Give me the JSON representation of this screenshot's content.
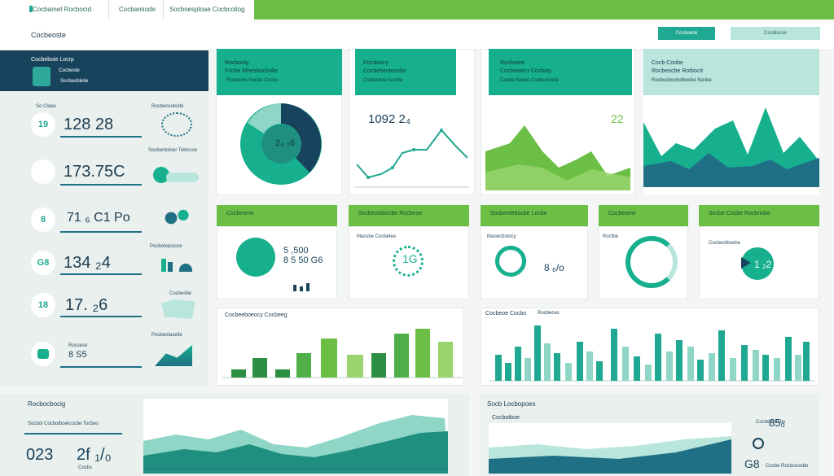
{
  "topbar": {
    "tab1": "Cocbamet Rocbocid",
    "tab2": "Cocbamiode",
    "tab3": "Socboesploae Cocbcoilog"
  },
  "header": {
    "title": "Cocbeoste",
    "btn_primary": "Cocbowte",
    "btn_secondary": "Cocblocke"
  },
  "sidebar": {
    "head_title": "Cocbeboie Locrp",
    "head_line1": "Cocbeote",
    "head_line2": "Socbeoblelie",
    "kpis": [
      {
        "icon": "19",
        "value": "128 28",
        "label": "So Cloee",
        "side": "Rocbensolcide"
      },
      {
        "icon": "",
        "value": "173.75C",
        "label": "",
        "side": "Socbentoboir Tebicsse"
      },
      {
        "icon": "8",
        "value": "71 ₆ C1 Po",
        "label": "",
        "side": ""
      },
      {
        "icon": "G8",
        "value": "134 ₂4",
        "label": "",
        "side": "Pocbotepiocoe"
      },
      {
        "icon": "18",
        "value": "17. ₂6",
        "label": "",
        "side": "Cocbeotie"
      },
      {
        "icon": "",
        "value": "8 S5",
        "label": "Rocsese",
        "side": "Pocbeotaseile"
      }
    ]
  },
  "top_cards": [
    {
      "title": "Rocbooty",
      "sub": "Focbe Mhestrocbolie",
      "sub2": "Rocbeoto Nocbe Cocbs",
      "value": "2₀ ₂6"
    },
    {
      "title": "Rocboocy",
      "sub": "Cocbebeoteocbe",
      "sub2": "Cocbeoste bcolde",
      "value": "1092 2₄"
    },
    {
      "title": "Rocbotee",
      "sub": "Cocbeotecr Cocbaty",
      "sub2": "Cocbe Nocbe Corbecboide",
      "value": "22"
    },
    {
      "title": "Cocb Coobe",
      "sub": "Rocbeocbe Rotbocit",
      "sub2": "Rocbocbocbotbocbe Nocbe",
      "value": ""
    }
  ],
  "mid_cards": [
    {
      "title": "Cocbeome",
      "sub": "",
      "value": "5 ,500\n8 5 50 G6"
    },
    {
      "title": "Socbeotsbocbe Rocbeoe",
      "sub": "Macsbe Cocbelee",
      "value": "1G"
    },
    {
      "title": "Socbeotebocbe Locbe",
      "sub": "Maoecbotocy",
      "value": "8 ₆/o"
    },
    {
      "title": "Cocbeome",
      "sub": "Roctbe",
      "value": ""
    },
    {
      "title": "Socbe Cocbe Rocbnobe",
      "sub": "Cocbeotboebe",
      "value": "1 ₂2"
    }
  ],
  "bar_chart_left": {
    "title": "Cocbeeboeocy Cocbeeg"
  },
  "bar_chart_right": {
    "title": "Cocbeoe Cocbo",
    "sub": "Rocbeces"
  },
  "bottom_left": {
    "title": "Rocbocbocig",
    "sub": "Socbol Cocbotboelcocbe Tocbes",
    "big": "023",
    "big2": "2f ₁/₀",
    "foot": "Cocbs"
  },
  "bottom_right": {
    "title": "Socb Locbopoes",
    "sub": "Cocbotboe",
    "stat": "85₀",
    "stat_lbl": "Cocbe Cocbe",
    "stat2": "G8",
    "stat2_lbl": "Cocbe Rocbceocbe"
  },
  "colors": {
    "teal": "#17b08f",
    "green": "#6cbf45",
    "navy": "#18435c"
  }
}
